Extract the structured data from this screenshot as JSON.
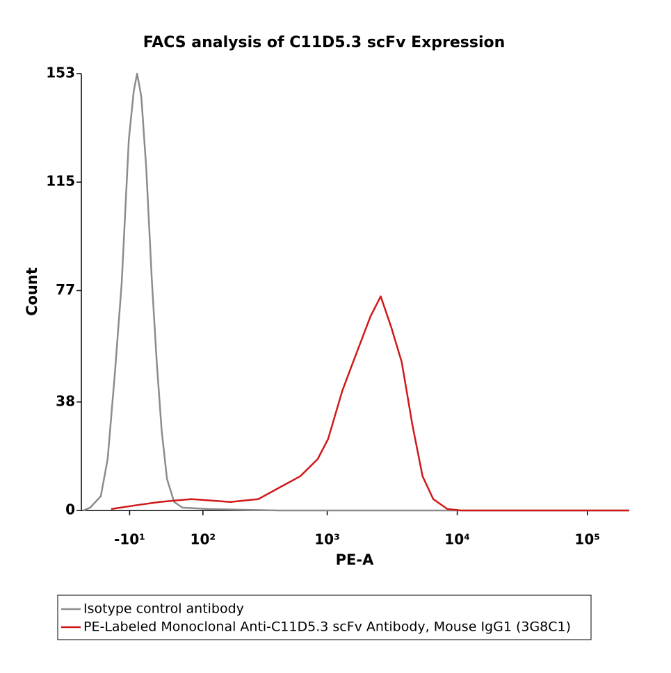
{
  "chart_data": {
    "type": "line",
    "title": "FACS analysis of C11D5.3 scFv Expression",
    "xlabel": "PE-A",
    "ylabel": "Count",
    "xscale": "biexponential",
    "xlim": [
      -78,
      210000
    ],
    "ylim": [
      0,
      153
    ],
    "xticks": [
      {
        "value": -10,
        "label": "-10¹"
      },
      {
        "value": 100,
        "label": "10²"
      },
      {
        "value": 1000,
        "label": "10³"
      },
      {
        "value": 10000,
        "label": "10⁴"
      },
      {
        "value": 100000,
        "label": "10⁵"
      }
    ],
    "yticks": [
      0,
      38,
      77,
      115,
      153
    ],
    "grid": false,
    "series": [
      {
        "name": "Isotype control antibody",
        "color": "#8c8c8c",
        "x": [
          -78,
          -66,
          -49,
          -39,
          -29,
          -20,
          -11,
          -4.8,
          -0.7,
          4.5,
          10.6,
          17.7,
          24,
          30.6,
          38,
          48.4,
          61.5,
          113,
          426,
          5110,
          210000
        ],
        "values": [
          0,
          1,
          5,
          18,
          48,
          80,
          130,
          147,
          153,
          145,
          120,
          81,
          52,
          28,
          11,
          3,
          1,
          0.5,
          0,
          0,
          0
        ]
      },
      {
        "name": "PE-Labeled Monoclonal Anti-C11D5.3 scFv Antibody, Mouse IgG1 (3G8C1)",
        "color": "#d01818",
        "x": [
          -34,
          1.9,
          28,
          77,
          174,
          292,
          426,
          620,
          845,
          1015,
          1309,
          1676,
          2155,
          2580,
          3120,
          3740,
          4520,
          5410,
          6540,
          8400,
          10800,
          210000
        ],
        "values": [
          0.5,
          2,
          3,
          4,
          3,
          4,
          8,
          12,
          18,
          25,
          42,
          55,
          68,
          75,
          64,
          52,
          30,
          12,
          4,
          0.5,
          0,
          0
        ]
      }
    ]
  }
}
